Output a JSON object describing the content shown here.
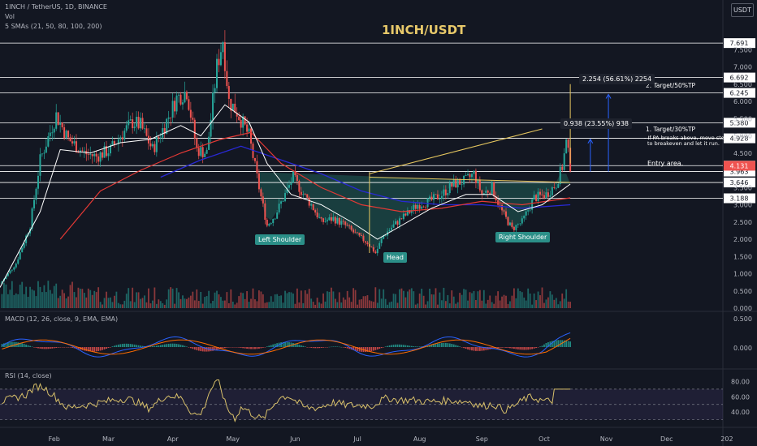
{
  "header": {
    "symbol_line": "1INCH / TetherUS, 1D, BINANCE",
    "vol_label": "Vol",
    "sma_label": "5 SMAs (21, 50, 80, 100, 200)",
    "currency_badge": "USDT",
    "chart_title": "1INCH/USDT"
  },
  "annotations": {
    "left_shoulder": "Left Shoulder",
    "head": "Head",
    "right_shoulder": "Right Shoulder",
    "entry_area": "Entry area.",
    "target1": "1. Target/30%TP",
    "target1_note_line1": "- If PA breaks above, move stop",
    "target1_note_line2": "to breakeven and let it run.",
    "target2": "2. Target/50%TP",
    "measure1": "0.938 (23.55%) 938",
    "measure2": "2.254 (56.61%) 2254"
  },
  "panes": {
    "macd_label": "MACD (12, 26, close, 9, EMA, EMA)",
    "rsi_label": "RSI (14, close)"
  },
  "colors": {
    "background": "#131722",
    "bull": "#26a69a",
    "bear": "#ef5350",
    "sma21": "#ffffff",
    "sma_red": "#e53935",
    "sma_blue": "#2929d6",
    "trendline": "#e6c75f",
    "pattern_fill": "#1f5e58",
    "rsi_line": "#d8c06a",
    "rsi_band": "#7e57c2",
    "macd_line": "#2962ff",
    "signal_line": "#ff6d00"
  },
  "chart_data": [
    {
      "type": "candlestick",
      "ylim": [
        0,
        8
      ],
      "price_axis_ticks": [
        "7.500",
        "7.000",
        "6.500",
        "6.000",
        "5.500",
        "5.000",
        "4.500",
        "3.500",
        "3.000",
        "2.500",
        "2.000",
        "1.500",
        "1.000",
        "0.500",
        "0.000"
      ],
      "horizontal_levels": [
        {
          "label": "7.691",
          "value": 7.691
        },
        {
          "label": "6.692",
          "value": 6.692
        },
        {
          "label": "6.245",
          "value": 6.245
        },
        {
          "label": "5.380",
          "value": 5.38
        },
        {
          "label": "4.928",
          "value": 4.928
        },
        {
          "label": "4.135",
          "value": 4.135
        },
        {
          "label": "3.963",
          "value": 3.963
        },
        {
          "label": "3.646",
          "value": 3.646
        },
        {
          "label": "3.188",
          "value": 3.188
        }
      ],
      "last_price": {
        "label": "4.131",
        "value": 4.131
      },
      "x_axis_labels": [
        "Feb",
        "Mar",
        "Apr",
        "May",
        "Jun",
        "Jul",
        "Aug",
        "Sep",
        "Oct",
        "Nov",
        "Dec",
        "202"
      ],
      "trend": [
        {
          "x": 0,
          "y": 0.7
        },
        {
          "x": 8,
          "y": 1.3
        },
        {
          "x": 15,
          "y": 2.4
        },
        {
          "x": 20,
          "y": 4.3
        },
        {
          "x": 28,
          "y": 5.6
        },
        {
          "x": 34,
          "y": 4.9
        },
        {
          "x": 42,
          "y": 4.5
        },
        {
          "x": 48,
          "y": 4.4
        },
        {
          "x": 55,
          "y": 4.6
        },
        {
          "x": 60,
          "y": 5.0
        },
        {
          "x": 66,
          "y": 5.4
        },
        {
          "x": 70,
          "y": 5.3
        },
        {
          "x": 76,
          "y": 4.6
        },
        {
          "x": 82,
          "y": 5.3
        },
        {
          "x": 88,
          "y": 6.1
        },
        {
          "x": 93,
          "y": 6.3
        },
        {
          "x": 98,
          "y": 4.6
        },
        {
          "x": 103,
          "y": 4.5
        },
        {
          "x": 108,
          "y": 7.0
        },
        {
          "x": 111,
          "y": 7.8
        },
        {
          "x": 114,
          "y": 6.0
        },
        {
          "x": 118,
          "y": 5.7
        },
        {
          "x": 124,
          "y": 5.0
        },
        {
          "x": 129,
          "y": 3.5
        },
        {
          "x": 133,
          "y": 2.4
        },
        {
          "x": 137,
          "y": 2.7
        },
        {
          "x": 142,
          "y": 3.3
        },
        {
          "x": 146,
          "y": 3.8
        },
        {
          "x": 150,
          "y": 3.4
        },
        {
          "x": 155,
          "y": 3.0
        },
        {
          "x": 160,
          "y": 2.5
        },
        {
          "x": 166,
          "y": 2.6
        },
        {
          "x": 172,
          "y": 2.4
        },
        {
          "x": 178,
          "y": 2.1
        },
        {
          "x": 183,
          "y": 1.9
        },
        {
          "x": 187,
          "y": 1.6
        },
        {
          "x": 191,
          "y": 2.1
        },
        {
          "x": 196,
          "y": 2.4
        },
        {
          "x": 202,
          "y": 2.7
        },
        {
          "x": 208,
          "y": 3.0
        },
        {
          "x": 214,
          "y": 3.1
        },
        {
          "x": 220,
          "y": 3.3
        },
        {
          "x": 226,
          "y": 3.6
        },
        {
          "x": 232,
          "y": 3.7
        },
        {
          "x": 236,
          "y": 3.9
        },
        {
          "x": 240,
          "y": 3.3
        },
        {
          "x": 245,
          "y": 3.5
        },
        {
          "x": 250,
          "y": 2.8
        },
        {
          "x": 255,
          "y": 2.3
        },
        {
          "x": 260,
          "y": 2.5
        },
        {
          "x": 266,
          "y": 3.2
        },
        {
          "x": 272,
          "y": 3.3
        },
        {
          "x": 277,
          "y": 3.6
        },
        {
          "x": 280,
          "y": 4.1
        },
        {
          "x": 282,
          "y": 4.8
        },
        {
          "x": 284,
          "y": 4.13
        }
      ],
      "sma21": [
        {
          "x": 0,
          "y": 0.6
        },
        {
          "x": 20,
          "y": 2.8
        },
        {
          "x": 30,
          "y": 4.6
        },
        {
          "x": 45,
          "y": 4.5
        },
        {
          "x": 60,
          "y": 4.8
        },
        {
          "x": 75,
          "y": 4.9
        },
        {
          "x": 90,
          "y": 5.3
        },
        {
          "x": 100,
          "y": 5.0
        },
        {
          "x": 112,
          "y": 5.9
        },
        {
          "x": 124,
          "y": 5.4
        },
        {
          "x": 133,
          "y": 4.2
        },
        {
          "x": 145,
          "y": 3.3
        },
        {
          "x": 160,
          "y": 3.0
        },
        {
          "x": 175,
          "y": 2.5
        },
        {
          "x": 188,
          "y": 2.0
        },
        {
          "x": 200,
          "y": 2.4
        },
        {
          "x": 215,
          "y": 2.9
        },
        {
          "x": 232,
          "y": 3.3
        },
        {
          "x": 245,
          "y": 3.3
        },
        {
          "x": 258,
          "y": 2.8
        },
        {
          "x": 270,
          "y": 3.0
        },
        {
          "x": 284,
          "y": 3.6
        }
      ],
      "sma_red": [
        {
          "x": 30,
          "y": 2.0
        },
        {
          "x": 50,
          "y": 3.4
        },
        {
          "x": 70,
          "y": 4.0
        },
        {
          "x": 90,
          "y": 4.5
        },
        {
          "x": 110,
          "y": 4.9
        },
        {
          "x": 125,
          "y": 5.1
        },
        {
          "x": 140,
          "y": 4.2
        },
        {
          "x": 160,
          "y": 3.5
        },
        {
          "x": 180,
          "y": 3.0
        },
        {
          "x": 200,
          "y": 2.8
        },
        {
          "x": 220,
          "y": 2.9
        },
        {
          "x": 240,
          "y": 3.1
        },
        {
          "x": 260,
          "y": 3.0
        },
        {
          "x": 284,
          "y": 3.2
        }
      ],
      "sma_blue": [
        {
          "x": 80,
          "y": 3.8
        },
        {
          "x": 100,
          "y": 4.3
        },
        {
          "x": 120,
          "y": 4.7
        },
        {
          "x": 140,
          "y": 4.3
        },
        {
          "x": 160,
          "y": 3.9
        },
        {
          "x": 180,
          "y": 3.4
        },
        {
          "x": 200,
          "y": 3.1
        },
        {
          "x": 220,
          "y": 3.0
        },
        {
          "x": 240,
          "y": 3.0
        },
        {
          "x": 260,
          "y": 2.9
        },
        {
          "x": 284,
          "y": 3.0
        }
      ]
    },
    {
      "type": "bar",
      "name": "Vol",
      "note": "volume histogram beneath price pane"
    },
    {
      "type": "line",
      "name": "MACD",
      "ylim": [
        -0.6,
        0.6
      ],
      "axis_ticks": [
        "0.500",
        "0.000"
      ],
      "series_names": [
        "MACD",
        "Signal",
        "Histogram"
      ]
    },
    {
      "type": "line",
      "name": "RSI",
      "ylim": [
        20,
        90
      ],
      "axis_ticks": [
        "80.00",
        "60.00",
        "40.00"
      ],
      "bands": [
        30,
        70
      ]
    }
  ]
}
